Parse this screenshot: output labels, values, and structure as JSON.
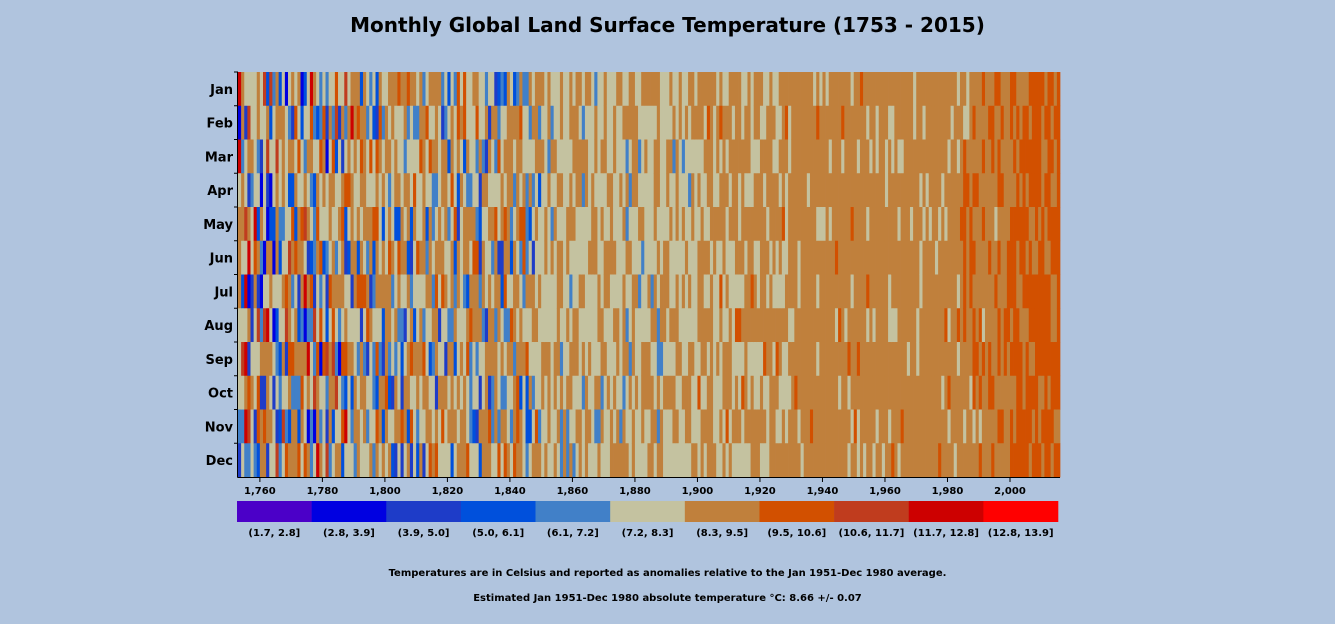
{
  "chart_data": {
    "type": "heatmap",
    "title": "Monthly Global Land Surface Temperature (1753 - 2015)",
    "x_range": [
      1753,
      2015
    ],
    "x_ticks": [
      "1,760",
      "1,780",
      "1,800",
      "1,820",
      "1,840",
      "1,860",
      "1,880",
      "1,900",
      "1,920",
      "1,940",
      "1,960",
      "1,980",
      "2,000"
    ],
    "x_tick_values": [
      1760,
      1780,
      1800,
      1820,
      1840,
      1860,
      1880,
      1900,
      1920,
      1940,
      1960,
      1980,
      2000
    ],
    "months": [
      "Jan",
      "Feb",
      "Mar",
      "Apr",
      "May",
      "Jun",
      "Jul",
      "Aug",
      "Sep",
      "Oct",
      "Nov",
      "Dec"
    ],
    "color_bins": [
      {
        "label": "(1.7, 2.8]",
        "range": [
          1.7,
          2.8
        ],
        "color": "#4b00c8"
      },
      {
        "label": "(2.8, 3.9]",
        "range": [
          2.8,
          3.9
        ],
        "color": "#0000e1"
      },
      {
        "label": "(3.9, 5.0]",
        "range": [
          3.9,
          5.0
        ],
        "color": "#1e3cc8"
      },
      {
        "label": "(5.0, 6.1]",
        "range": [
          5.0,
          6.1
        ],
        "color": "#0050dc"
      },
      {
        "label": "(6.1, 7.2]",
        "range": [
          6.1,
          7.2
        ],
        "color": "#4180c8"
      },
      {
        "label": "(7.2, 8.3]",
        "range": [
          7.2,
          8.3
        ],
        "color": "#c4c2a0"
      },
      {
        "label": "(8.3, 9.5]",
        "range": [
          8.3,
          9.5
        ],
        "color": "#c0803c"
      },
      {
        "label": "(9.5, 10.6]",
        "range": [
          9.5,
          10.6
        ],
        "color": "#d25000"
      },
      {
        "label": "(10.6, 11.7]",
        "range": [
          10.6,
          11.7
        ],
        "color": "#c03c1e"
      },
      {
        "label": "(11.7, 12.8]",
        "range": [
          11.7,
          12.8
        ],
        "color": "#cd0000"
      },
      {
        "label": "(12.8, 13.9]",
        "range": [
          12.8,
          13.9
        ],
        "color": "#ff0000"
      }
    ],
    "values_note": "Values are approximate temperature-bin indices (0-10) per year and month, read from cell colors.",
    "grid": false,
    "legend_position": "bottom"
  },
  "notes": {
    "line1": "Temperatures are in Celsius and reported as anomalies relative to the Jan 1951-Dec 1980 average.",
    "line2": "Estimated Jan 1951-Dec 1980 absolute temperature °C: 8.66 +/- 0.07"
  }
}
